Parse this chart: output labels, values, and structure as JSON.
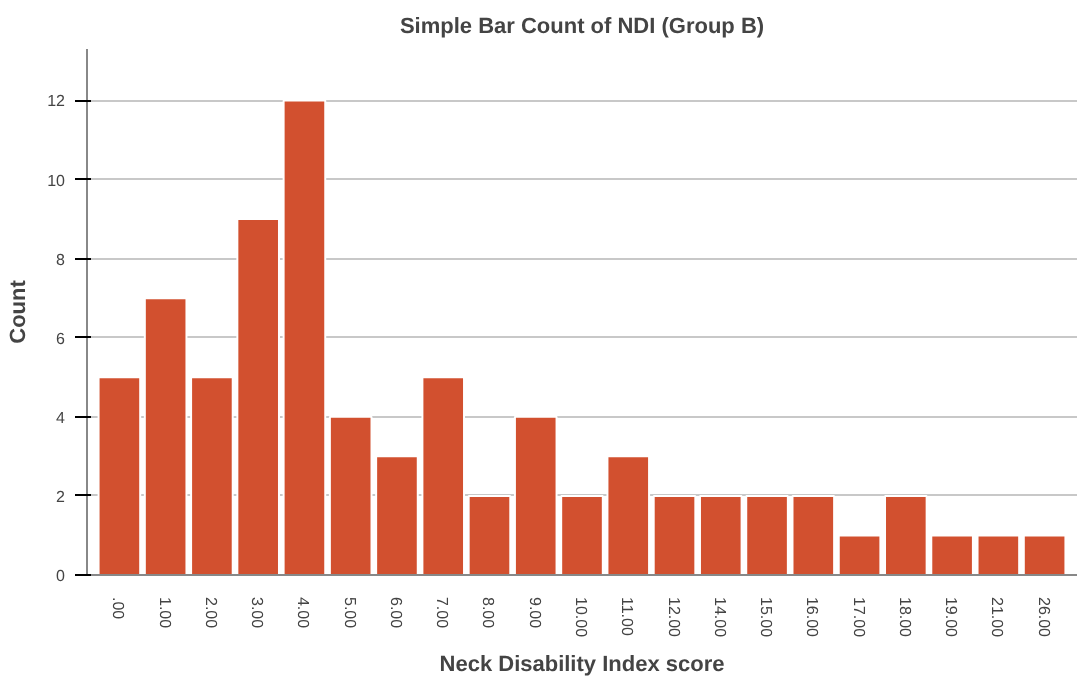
{
  "chart_data": {
    "type": "bar",
    "title": "Simple Bar Count of NDI (Group B)",
    "xlabel": "Neck Disability Index score",
    "ylabel": "Count",
    "categories": [
      ".00",
      "1.00",
      "2.00",
      "3.00",
      "4.00",
      "5.00",
      "6.00",
      "7.00",
      "8.00",
      "9.00",
      "10.00",
      "11.00",
      "12.00",
      "14.00",
      "15.00",
      "16.00",
      "17.00",
      "18.00",
      "19.00",
      "21.00",
      "26.00"
    ],
    "values": [
      5,
      7,
      5,
      9,
      12,
      4,
      3,
      5,
      2,
      4,
      2,
      3,
      2,
      2,
      2,
      2,
      1,
      2,
      1,
      1,
      1
    ],
    "color": "#d2502f",
    "ylim": [
      0,
      13.3
    ],
    "yticks": [
      0,
      2,
      4,
      6,
      8,
      10,
      12
    ],
    "grid": "y"
  }
}
